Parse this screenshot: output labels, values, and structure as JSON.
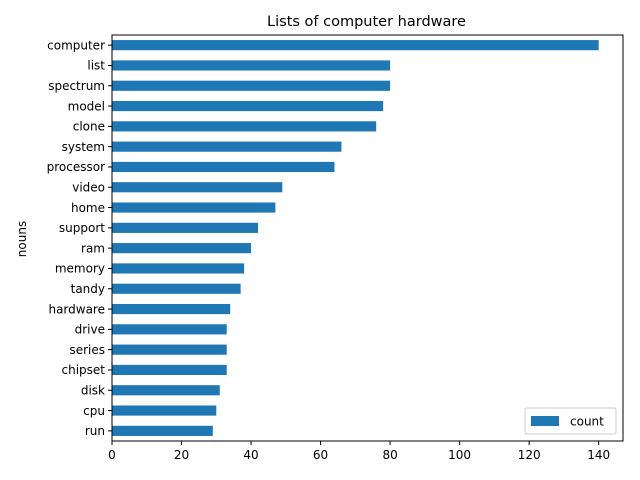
{
  "chart_data": {
    "type": "bar",
    "orientation": "horizontal",
    "title": "Lists of computer hardware",
    "xlabel": "",
    "ylabel": "nouns",
    "categories": [
      "computer",
      "list",
      "spectrum",
      "model",
      "clone",
      "system",
      "processor",
      "video",
      "home",
      "support",
      "ram",
      "memory",
      "tandy",
      "hardware",
      "drive",
      "series",
      "chipset",
      "disk",
      "cpu",
      "run"
    ],
    "series": [
      {
        "name": "count",
        "values": [
          140,
          80,
          80,
          78,
          76,
          66,
          64,
          49,
          47,
          42,
          40,
          38,
          37,
          34,
          33,
          33,
          33,
          31,
          30,
          29
        ]
      }
    ],
    "xlim": [
      0,
      147
    ],
    "xticks": [
      0,
      20,
      40,
      60,
      80,
      100,
      120,
      140
    ],
    "grid": false,
    "legend_position": "lower-right",
    "colors": {
      "bar": "#1f77b4",
      "axis": "#000000",
      "background": "#ffffff"
    }
  }
}
